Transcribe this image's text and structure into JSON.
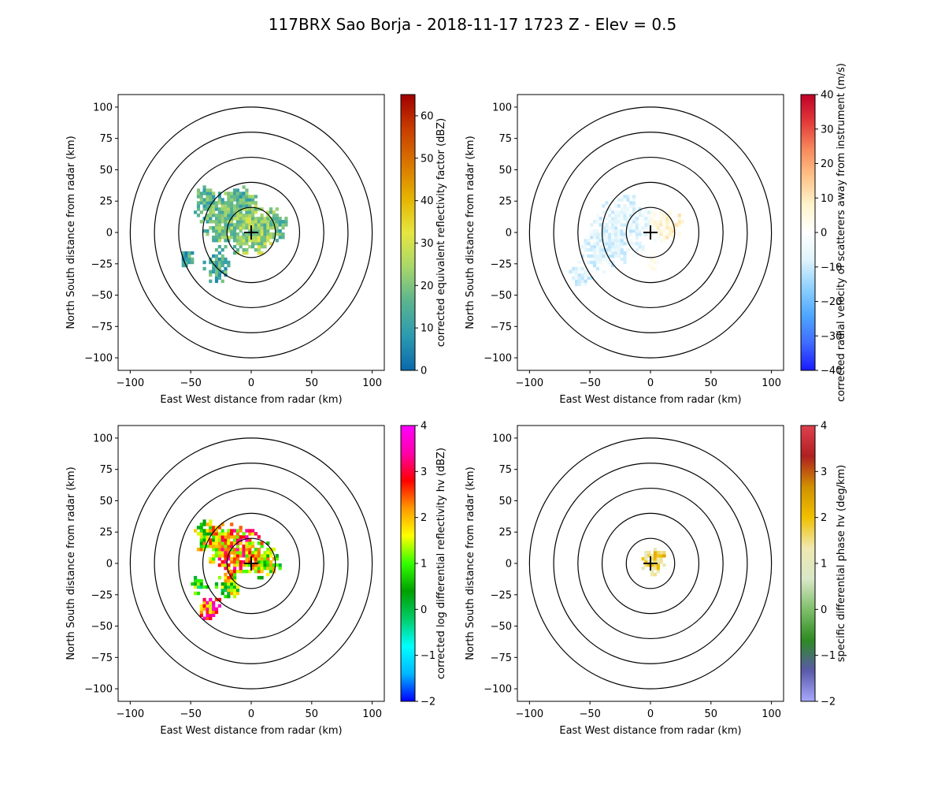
{
  "title": "117BRX Sao Borja - 2018-11-17 1723 Z -  Elev = 0.5",
  "chart_data": [
    {
      "type": "heatmap",
      "panel": "top-left",
      "field": "reflectivity",
      "xlabel": "East West distance from radar (km)",
      "ylabel": "North South distance from radar (km)",
      "xlim": [
        -110,
        110
      ],
      "ylim": [
        -110,
        110
      ],
      "xticks": [
        -100,
        -50,
        0,
        50,
        100
      ],
      "yticks": [
        -100,
        -75,
        -50,
        -25,
        0,
        25,
        50,
        75,
        100
      ],
      "range_rings_km": [
        20,
        40,
        60,
        80,
        100
      ],
      "radar_location": [
        0,
        0
      ],
      "colorbar": {
        "label": "corrected equivalent reflectivity factor (dBZ)",
        "range": [
          0,
          65
        ],
        "ticks": [
          0,
          10,
          20,
          30,
          40,
          50,
          60
        ],
        "colors": [
          "#0b69ab",
          "#2b9bb0",
          "#5bb48f",
          "#a8d76a",
          "#e6e640",
          "#e5b300",
          "#d97500",
          "#c93d00",
          "#a00000"
        ]
      },
      "echo": {
        "min": 0,
        "max": 35,
        "seed": 11,
        "blobs": [
          {
            "x": 0,
            "y": 0,
            "r": 20,
            "v": 25
          },
          {
            "x": -22,
            "y": 8,
            "r": 22,
            "v": 18
          },
          {
            "x": -38,
            "y": 25,
            "r": 12,
            "v": 15
          },
          {
            "x": -30,
            "y": -30,
            "r": 12,
            "v": 13
          },
          {
            "x": -55,
            "y": -22,
            "r": 7,
            "v": 12
          },
          {
            "x": -10,
            "y": 25,
            "r": 12,
            "v": 14
          },
          {
            "x": 18,
            "y": 5,
            "r": 12,
            "v": 16
          }
        ]
      }
    },
    {
      "type": "heatmap",
      "panel": "top-right",
      "field": "velocity",
      "xlabel": "East West distance from radar (km)",
      "ylabel": "North South distance from radar (km)",
      "xlim": [
        -110,
        110
      ],
      "ylim": [
        -110,
        110
      ],
      "xticks": [
        -100,
        -50,
        0,
        50,
        100
      ],
      "yticks": [
        -100,
        -75,
        -50,
        -25,
        0,
        25,
        50,
        75,
        100
      ],
      "range_rings_km": [
        20,
        40,
        60,
        80,
        100
      ],
      "radar_location": [
        0,
        0
      ],
      "colorbar": {
        "label": "corrected radial velocity of scatterers away from instrument (m/s)",
        "range": [
          -40,
          40
        ],
        "ticks": [
          -40,
          -30,
          -20,
          -10,
          0,
          10,
          20,
          30,
          40
        ],
        "colors": [
          "#1a1aff",
          "#3f6cff",
          "#4ea7ff",
          "#8fd1ff",
          "#dff4fb",
          "#ffffff",
          "#fff4cc",
          "#ffc48a",
          "#f88a5c",
          "#e23a3a",
          "#c00028"
        ]
      },
      "echo": {
        "min": -12,
        "max": 12,
        "seed": 22,
        "blobs": [
          {
            "x": -22,
            "y": 5,
            "r": 25,
            "v": -6
          },
          {
            "x": -40,
            "y": -15,
            "r": 18,
            "v": -7
          },
          {
            "x": -60,
            "y": -35,
            "r": 10,
            "v": -7
          },
          {
            "x": 12,
            "y": 5,
            "r": 14,
            "v": 7
          },
          {
            "x": 0,
            "y": -25,
            "r": 8,
            "v": 2
          }
        ]
      }
    },
    {
      "type": "heatmap",
      "panel": "bottom-left",
      "field": "differential_reflectivity",
      "xlabel": "East West distance from radar (km)",
      "ylabel": "North South distance from radar (km)",
      "xlim": [
        -110,
        110
      ],
      "ylim": [
        -110,
        110
      ],
      "xticks": [
        -100,
        -50,
        0,
        50,
        100
      ],
      "yticks": [
        -100,
        -75,
        -50,
        -25,
        0,
        25,
        50,
        75,
        100
      ],
      "range_rings_km": [
        20,
        40,
        60,
        80,
        100
      ],
      "radar_location": [
        0,
        0
      ],
      "colorbar": {
        "label": "corrected log differential reflectivity hv (dBZ)",
        "range": [
          -2,
          4
        ],
        "ticks": [
          -2,
          -1,
          0,
          1,
          2,
          3,
          4
        ],
        "colors": [
          "#0000ff",
          "#00b7ff",
          "#00ffff",
          "#00cc66",
          "#00a000",
          "#33ff00",
          "#ffff00",
          "#ff9900",
          "#ff0000",
          "#ff00aa",
          "#ff00ff"
        ]
      },
      "echo": {
        "min": -1,
        "max": 4,
        "seed": 33,
        "blobs": [
          {
            "x": -15,
            "y": 10,
            "r": 22,
            "v": 2.4
          },
          {
            "x": 10,
            "y": 0,
            "r": 14,
            "v": 1.2
          },
          {
            "x": -35,
            "y": 20,
            "r": 14,
            "v": 1.2
          },
          {
            "x": -35,
            "y": -38,
            "r": 10,
            "v": 2.6
          },
          {
            "x": -45,
            "y": -18,
            "r": 8,
            "v": 0.8
          },
          {
            "x": -20,
            "y": -20,
            "r": 10,
            "v": 1.0
          }
        ]
      }
    },
    {
      "type": "heatmap",
      "panel": "bottom-right",
      "field": "specific_differential_phase",
      "xlabel": "East West distance from radar (km)",
      "ylabel": "North South distance from radar (km)",
      "xlim": [
        -110,
        110
      ],
      "ylim": [
        -110,
        110
      ],
      "xticks": [
        -100,
        -50,
        0,
        50,
        100
      ],
      "yticks": [
        -100,
        -75,
        -50,
        -25,
        0,
        25,
        50,
        75,
        100
      ],
      "range_rings_km": [
        20,
        40,
        60,
        80,
        100
      ],
      "radar_location": [
        0,
        0
      ],
      "colorbar": {
        "label": "specific differential phase hv (deg/km)",
        "range": [
          -2,
          4
        ],
        "ticks": [
          -2,
          -1,
          0,
          1,
          2,
          3,
          4
        ],
        "colors": [
          "#a8a8ff",
          "#5a5aaa",
          "#2e8b22",
          "#7fbf6a",
          "#d8e8c8",
          "#f0e8b0",
          "#f0c000",
          "#d09000",
          "#b02020",
          "#e04050"
        ]
      },
      "echo": {
        "min": 0,
        "max": 2.4,
        "seed": 44,
        "blobs": [
          {
            "x": 0,
            "y": 0,
            "r": 11,
            "v": 1.5
          },
          {
            "x": 6,
            "y": 5,
            "r": 6,
            "v": 2.0
          }
        ]
      }
    }
  ]
}
